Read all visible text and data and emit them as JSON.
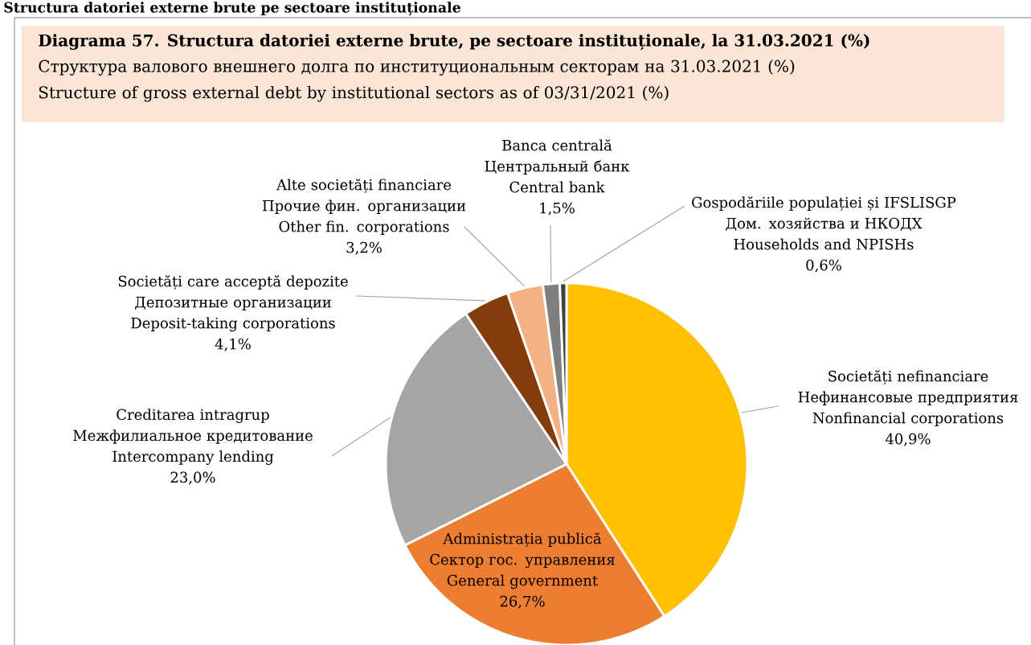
{
  "chart_data": {
    "type": "pie",
    "title": "Diagrama 57. Structura datoriei externe brute, pe sectoare instituționale, la 31.03.2021 (%)",
    "subtitle": "Структура валового внешнего долга по институциональным секторам на 31.03.2021 (%)\nStructure of gross external debt by institutional sectors as of 03/31/2021 (%)",
    "annotations": [
      "Structura datoriei externe brute pe sectoare instituționale"
    ],
    "categories": [
      "Societăți nefinanciare\nНефинансовые предприятия\nNonfinancial corporations",
      "Administrația publică\nСектор гос. управления\nGeneral government",
      "Creditarea intragrup\nМежфилиальное кредитование\nIntercompany lending",
      "Societăți care acceptă depozite\nДепозитные организации\nDeposit-taking corporations",
      "Alte societăți financiare\nПрочие фин. организации\nOther fin. corporations",
      "Banca centrală\nЦентральный банк\nCentral bank",
      "Gospodăriile populației și IFSLISGP\nДом. хозяйства и НКОДХ\nHouseholds and NPISHs"
    ],
    "values": [
      40.9,
      26.7,
      23.0,
      4.1,
      3.2,
      1.5,
      0.6
    ],
    "value_labels": [
      "40,9%",
      "26,7%",
      "23,0%",
      "4,1%",
      "3,2%",
      "1,5%",
      "0,6%"
    ],
    "colors": [
      "#ffc000",
      "#ed7d31",
      "#a5a5a5",
      "#843c0c",
      "#f4b183",
      "#7f7f7f",
      "#404040"
    ],
    "legend": false
  }
}
